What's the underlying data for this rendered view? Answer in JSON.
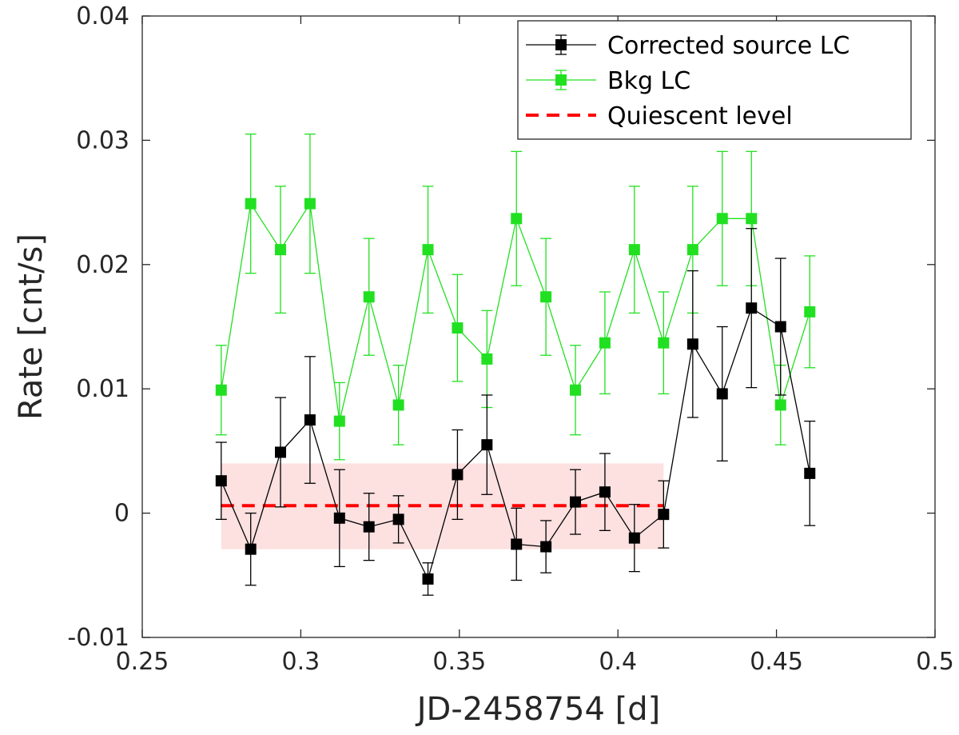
{
  "chart_data": {
    "type": "line",
    "xlabel": "JD-2458754 [d]",
    "ylabel": "Rate [cnt/s]",
    "xlim": [
      0.25,
      0.5
    ],
    "ylim": [
      -0.01,
      0.04
    ],
    "x_ticks": [
      0.25,
      0.3,
      0.35,
      0.4,
      0.45,
      0.5
    ],
    "x_tick_labels": [
      "0.25",
      "0.3",
      "0.35",
      "0.4",
      "0.45",
      "0.5"
    ],
    "y_ticks": [
      -0.01,
      0,
      0.01,
      0.02,
      0.03,
      0.04
    ],
    "y_tick_labels": [
      "-0.01",
      "0",
      "0.01",
      "0.02",
      "0.03",
      "0.04"
    ],
    "grid": false,
    "legend_position": "top-right",
    "series": [
      {
        "name": "Corrected source LC",
        "color": "#000000",
        "marker": "square",
        "x": [
          0.2749,
          0.2842,
          0.2936,
          0.3029,
          0.3122,
          0.3215,
          0.3308,
          0.3401,
          0.3494,
          0.3587,
          0.368,
          0.3773,
          0.3866,
          0.3959,
          0.4052,
          0.4144,
          0.4236,
          0.4329,
          0.4421,
          0.4513,
          0.4605
        ],
        "y": [
          0.0026,
          -0.0029,
          0.0049,
          0.0075,
          -0.0004,
          -0.0011,
          -0.0005,
          -0.0053,
          0.0031,
          0.0055,
          -0.0025,
          -0.0027,
          0.0009,
          0.0017,
          -0.002,
          -0.0001,
          0.0136,
          0.0096,
          0.0165,
          0.015,
          0.0032
        ],
        "err": [
          0.0031,
          0.0029,
          0.0044,
          0.0051,
          0.0039,
          0.0027,
          0.0019,
          0.0013,
          0.0036,
          0.004,
          0.0029,
          0.0021,
          0.0026,
          0.0031,
          0.0027,
          0.0027,
          0.0059,
          0.0054,
          0.0064,
          0.0055,
          0.0042
        ]
      },
      {
        "name": "Bkg LC",
        "color": "#21e021",
        "marker": "square",
        "x": [
          0.2749,
          0.2842,
          0.2936,
          0.3029,
          0.3122,
          0.3215,
          0.3308,
          0.3401,
          0.3494,
          0.3587,
          0.368,
          0.3773,
          0.3866,
          0.3959,
          0.4052,
          0.4144,
          0.4236,
          0.4329,
          0.4421,
          0.4513,
          0.4605
        ],
        "y": [
          0.0099,
          0.0249,
          0.0212,
          0.0249,
          0.0074,
          0.0174,
          0.0087,
          0.0212,
          0.0149,
          0.0124,
          0.0237,
          0.0174,
          0.0099,
          0.0137,
          0.0212,
          0.0137,
          0.0212,
          0.0237,
          0.0237,
          0.0087,
          0.0162
        ],
        "err": [
          0.0036,
          0.0056,
          0.0051,
          0.0056,
          0.0031,
          0.0047,
          0.0032,
          0.0051,
          0.0043,
          0.0039,
          0.0054,
          0.0047,
          0.0036,
          0.0041,
          0.0051,
          0.0041,
          0.0051,
          0.0054,
          0.0054,
          0.0032,
          0.0045
        ]
      }
    ],
    "quiescent_level": {
      "name": "Quiescent level",
      "color": "#ff0000",
      "style": "dashed",
      "x_range": [
        0.2749,
        0.4144
      ],
      "value": 0.0006,
      "band": [
        -0.0029,
        0.004
      ],
      "band_color": "#fde0e0"
    }
  }
}
